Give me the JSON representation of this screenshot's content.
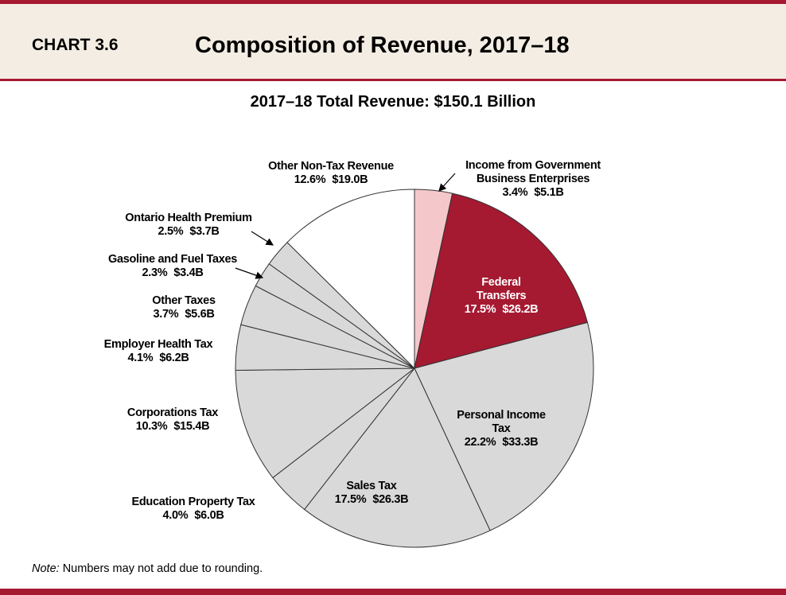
{
  "header": {
    "chart_number": "CHART 3.6",
    "title": "Composition of Revenue, 2017–18"
  },
  "chart_data": {
    "type": "pie",
    "title": "2017–18 Total Revenue: $150.1 Billion",
    "categories": [
      "Income from Government Business Enterprises",
      "Federal Transfers",
      "Personal Income Tax",
      "Sales Tax",
      "Education Property Tax",
      "Corporations Tax",
      "Employer Health Tax",
      "Other Taxes",
      "Gasoline and Fuel Taxes",
      "Ontario Health Premium",
      "Other Non-Tax Revenue"
    ],
    "values": [
      3.4,
      17.5,
      22.2,
      17.5,
      4.0,
      10.3,
      4.1,
      3.7,
      2.3,
      2.5,
      12.6
    ],
    "value_labels": [
      "3.4%",
      "17.5%",
      "22.2%",
      "17.5%",
      "4.0%",
      "10.3%",
      "4.1%",
      "3.7%",
      "2.3%",
      "2.5%",
      "12.6%"
    ],
    "amounts": [
      5.1,
      26.2,
      33.3,
      26.3,
      6.0,
      15.4,
      6.2,
      5.6,
      3.4,
      3.7,
      19.0
    ],
    "amount_labels": [
      "$5.1B",
      "$26.2B",
      "$33.3B",
      "$26.3B",
      "$6.0B",
      "$15.4B",
      "$6.2B",
      "$5.6B",
      "$3.4B",
      "$3.7B",
      "$19.0B"
    ],
    "colors": [
      "#f4c8cb",
      "#a51931",
      "#d9d9d9",
      "#d9d9d9",
      "#d9d9d9",
      "#d9d9d9",
      "#d9d9d9",
      "#d9d9d9",
      "#d9d9d9",
      "#d9d9d9",
      "#ffffff"
    ]
  },
  "note": {
    "label": "Note:",
    "text": "Numbers may not add due to rounding."
  }
}
